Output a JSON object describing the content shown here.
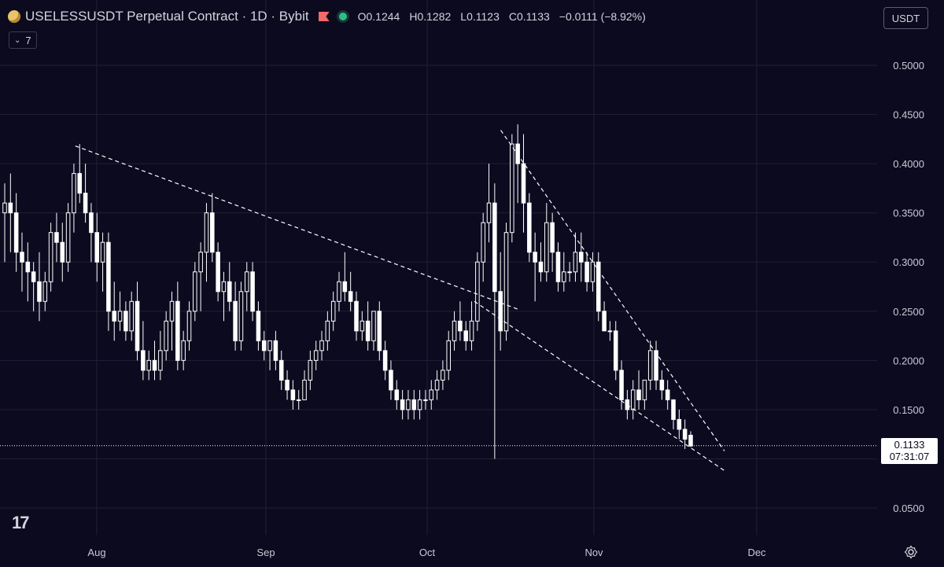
{
  "header": {
    "symbol": "USELESSUSDT Perpetual Contract · 1D · Bybit",
    "open_label": "O",
    "open": "0.1244",
    "high_label": "H",
    "high": "0.1282",
    "low_label": "L",
    "low": "0.1123",
    "close_label": "C",
    "close": "0.1133",
    "change": "−0.0111 (−8.92%)",
    "indicator_count": "7",
    "currency": "USDT"
  },
  "price_tag": {
    "price": "0.1133",
    "countdown": "07:31:07"
  },
  "colors": {
    "background": "#0c0a1f",
    "candle": "#ffffff",
    "grid": "#23243a",
    "text": "#d1d4dc"
  },
  "chart_data": {
    "type": "candlestick",
    "y_ticks": [
      "0.5000",
      "0.4500",
      "0.4000",
      "0.3500",
      "0.3000",
      "0.2500",
      "0.2000",
      "0.1500",
      "0.0500"
    ],
    "x_ticks": [
      "Aug",
      "Sep",
      "Oct",
      "Nov",
      "Dec"
    ],
    "ylim": [
      0.04,
      0.52
    ],
    "last_price": 0.1133,
    "candles": [
      [
        0.35,
        0.38,
        0.3,
        0.36
      ],
      [
        0.36,
        0.39,
        0.31,
        0.35
      ],
      [
        0.35,
        0.37,
        0.29,
        0.31
      ],
      [
        0.31,
        0.33,
        0.27,
        0.3
      ],
      [
        0.3,
        0.32,
        0.26,
        0.29
      ],
      [
        0.29,
        0.3,
        0.25,
        0.28
      ],
      [
        0.28,
        0.31,
        0.24,
        0.26
      ],
      [
        0.26,
        0.29,
        0.25,
        0.28
      ],
      [
        0.28,
        0.34,
        0.27,
        0.33
      ],
      [
        0.33,
        0.35,
        0.3,
        0.32
      ],
      [
        0.32,
        0.34,
        0.28,
        0.3
      ],
      [
        0.3,
        0.36,
        0.29,
        0.35
      ],
      [
        0.35,
        0.4,
        0.33,
        0.39
      ],
      [
        0.39,
        0.42,
        0.36,
        0.37
      ],
      [
        0.37,
        0.4,
        0.34,
        0.35
      ],
      [
        0.35,
        0.36,
        0.3,
        0.33
      ],
      [
        0.33,
        0.35,
        0.28,
        0.3
      ],
      [
        0.3,
        0.33,
        0.27,
        0.32
      ],
      [
        0.32,
        0.33,
        0.23,
        0.25
      ],
      [
        0.25,
        0.28,
        0.22,
        0.24
      ],
      [
        0.24,
        0.27,
        0.23,
        0.25
      ],
      [
        0.25,
        0.26,
        0.22,
        0.23
      ],
      [
        0.23,
        0.27,
        0.22,
        0.26
      ],
      [
        0.26,
        0.28,
        0.2,
        0.21
      ],
      [
        0.21,
        0.24,
        0.18,
        0.19
      ],
      [
        0.19,
        0.21,
        0.18,
        0.2
      ],
      [
        0.2,
        0.22,
        0.18,
        0.19
      ],
      [
        0.19,
        0.23,
        0.18,
        0.21
      ],
      [
        0.21,
        0.25,
        0.2,
        0.24
      ],
      [
        0.24,
        0.27,
        0.21,
        0.26
      ],
      [
        0.26,
        0.28,
        0.19,
        0.2
      ],
      [
        0.2,
        0.23,
        0.19,
        0.22
      ],
      [
        0.22,
        0.26,
        0.21,
        0.25
      ],
      [
        0.25,
        0.3,
        0.24,
        0.29
      ],
      [
        0.29,
        0.32,
        0.25,
        0.31
      ],
      [
        0.31,
        0.36,
        0.28,
        0.35
      ],
      [
        0.35,
        0.37,
        0.3,
        0.31
      ],
      [
        0.31,
        0.32,
        0.26,
        0.27
      ],
      [
        0.27,
        0.29,
        0.24,
        0.28
      ],
      [
        0.28,
        0.3,
        0.25,
        0.26
      ],
      [
        0.26,
        0.28,
        0.21,
        0.22
      ],
      [
        0.22,
        0.28,
        0.21,
        0.27
      ],
      [
        0.27,
        0.3,
        0.25,
        0.29
      ],
      [
        0.29,
        0.3,
        0.24,
        0.25
      ],
      [
        0.25,
        0.26,
        0.21,
        0.22
      ],
      [
        0.22,
        0.23,
        0.2,
        0.21
      ],
      [
        0.21,
        0.22,
        0.19,
        0.22
      ],
      [
        0.22,
        0.23,
        0.19,
        0.2
      ],
      [
        0.2,
        0.21,
        0.17,
        0.18
      ],
      [
        0.18,
        0.19,
        0.16,
        0.17
      ],
      [
        0.17,
        0.18,
        0.15,
        0.16
      ],
      [
        0.16,
        0.17,
        0.15,
        0.16
      ],
      [
        0.16,
        0.19,
        0.16,
        0.18
      ],
      [
        0.18,
        0.21,
        0.17,
        0.2
      ],
      [
        0.2,
        0.22,
        0.19,
        0.21
      ],
      [
        0.21,
        0.23,
        0.2,
        0.22
      ],
      [
        0.22,
        0.25,
        0.21,
        0.24
      ],
      [
        0.24,
        0.27,
        0.23,
        0.26
      ],
      [
        0.26,
        0.29,
        0.25,
        0.28
      ],
      [
        0.28,
        0.31,
        0.26,
        0.27
      ],
      [
        0.27,
        0.29,
        0.25,
        0.26
      ],
      [
        0.26,
        0.27,
        0.22,
        0.23
      ],
      [
        0.23,
        0.25,
        0.22,
        0.24
      ],
      [
        0.24,
        0.26,
        0.21,
        0.22
      ],
      [
        0.22,
        0.25,
        0.21,
        0.25
      ],
      [
        0.25,
        0.26,
        0.2,
        0.21
      ],
      [
        0.21,
        0.22,
        0.18,
        0.19
      ],
      [
        0.19,
        0.2,
        0.16,
        0.17
      ],
      [
        0.17,
        0.18,
        0.15,
        0.16
      ],
      [
        0.16,
        0.17,
        0.14,
        0.15
      ],
      [
        0.15,
        0.17,
        0.14,
        0.16
      ],
      [
        0.16,
        0.17,
        0.14,
        0.15
      ],
      [
        0.15,
        0.17,
        0.14,
        0.16
      ],
      [
        0.16,
        0.17,
        0.15,
        0.16
      ],
      [
        0.16,
        0.18,
        0.15,
        0.17
      ],
      [
        0.17,
        0.19,
        0.16,
        0.18
      ],
      [
        0.18,
        0.2,
        0.17,
        0.19
      ],
      [
        0.19,
        0.23,
        0.18,
        0.22
      ],
      [
        0.22,
        0.25,
        0.21,
        0.24
      ],
      [
        0.24,
        0.26,
        0.22,
        0.23
      ],
      [
        0.23,
        0.24,
        0.21,
        0.22
      ],
      [
        0.22,
        0.26,
        0.21,
        0.24
      ],
      [
        0.24,
        0.31,
        0.23,
        0.3
      ],
      [
        0.3,
        0.35,
        0.28,
        0.34
      ],
      [
        0.34,
        0.4,
        0.32,
        0.36
      ],
      [
        0.36,
        0.38,
        0.1,
        0.27
      ],
      [
        0.27,
        0.31,
        0.21,
        0.23
      ],
      [
        0.23,
        0.34,
        0.22,
        0.33
      ],
      [
        0.33,
        0.43,
        0.32,
        0.42
      ],
      [
        0.42,
        0.44,
        0.36,
        0.4
      ],
      [
        0.4,
        0.43,
        0.33,
        0.36
      ],
      [
        0.36,
        0.37,
        0.3,
        0.31
      ],
      [
        0.31,
        0.33,
        0.26,
        0.3
      ],
      [
        0.3,
        0.32,
        0.28,
        0.29
      ],
      [
        0.29,
        0.36,
        0.28,
        0.34
      ],
      [
        0.34,
        0.35,
        0.29,
        0.31
      ],
      [
        0.31,
        0.32,
        0.27,
        0.28
      ],
      [
        0.28,
        0.31,
        0.27,
        0.29
      ],
      [
        0.29,
        0.3,
        0.28,
        0.29
      ],
      [
        0.29,
        0.33,
        0.28,
        0.31
      ],
      [
        0.31,
        0.33,
        0.28,
        0.3
      ],
      [
        0.3,
        0.31,
        0.27,
        0.28
      ],
      [
        0.28,
        0.31,
        0.27,
        0.3
      ],
      [
        0.3,
        0.31,
        0.24,
        0.25
      ],
      [
        0.25,
        0.26,
        0.23,
        0.23
      ],
      [
        0.23,
        0.24,
        0.22,
        0.23
      ],
      [
        0.23,
        0.24,
        0.18,
        0.19
      ],
      [
        0.19,
        0.2,
        0.15,
        0.16
      ],
      [
        0.16,
        0.17,
        0.14,
        0.15
      ],
      [
        0.15,
        0.18,
        0.14,
        0.17
      ],
      [
        0.17,
        0.19,
        0.15,
        0.16
      ],
      [
        0.16,
        0.18,
        0.15,
        0.18
      ],
      [
        0.18,
        0.22,
        0.17,
        0.21
      ],
      [
        0.21,
        0.22,
        0.17,
        0.18
      ],
      [
        0.18,
        0.19,
        0.16,
        0.17
      ],
      [
        0.17,
        0.18,
        0.15,
        0.16
      ],
      [
        0.16,
        0.16,
        0.13,
        0.14
      ],
      [
        0.14,
        0.15,
        0.12,
        0.13
      ],
      [
        0.13,
        0.14,
        0.11,
        0.12
      ],
      [
        0.124,
        0.128,
        0.112,
        0.113
      ]
    ],
    "trendlines": [
      [
        [
          0.05,
          0.418
        ],
        [
          0.555,
          0.252
        ]
      ],
      [
        [
          0.505,
          0.26
        ],
        [
          0.79,
          0.088
        ]
      ],
      [
        [
          0.535,
          0.434
        ],
        [
          0.79,
          0.108
        ]
      ]
    ]
  }
}
